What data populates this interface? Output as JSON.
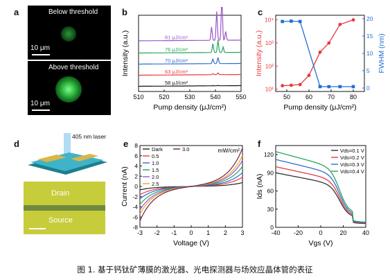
{
  "panels": {
    "a": {
      "label": "a",
      "top_text": "Below threshold",
      "bottom_text": "Above threshold",
      "scale_top": "10 μm",
      "scale_bottom": "10 μm"
    },
    "d": {
      "label": "d",
      "laser_text": "405 nm laser",
      "drain": "Drain",
      "source": "Source"
    }
  },
  "caption": "图 1. 基于钙钛矿薄膜的激光器、光电探测器与场效应晶体管的表征",
  "chart_data": [
    {
      "panel": "b",
      "type": "line",
      "title": "",
      "xlabel": "Pump density (μJ/cm²)",
      "ylabel": "Intensity (a.u.)",
      "xlim": [
        510,
        550
      ],
      "xticks": [
        510,
        520,
        530,
        540,
        550
      ],
      "series": [
        {
          "name": "58 μJ/cm²",
          "color": "#111111",
          "offset": 0.0,
          "peaks": [
            [
              539,
              0.02
            ],
            [
              541,
              0.03
            ]
          ]
        },
        {
          "name": "63 μJ/cm²",
          "color": "#e8383d",
          "offset": 1.0,
          "peaks": [
            [
              539,
              0.1
            ],
            [
              541,
              0.15
            ]
          ]
        },
        {
          "name": "70 μJ/cm²",
          "color": "#2f6cd1",
          "offset": 2.0,
          "peaks": [
            [
              539,
              0.4
            ],
            [
              541,
              0.55
            ]
          ]
        },
        {
          "name": "76 μJ/cm²",
          "color": "#25a55f",
          "offset": 3.0,
          "peaks": [
            [
              539,
              0.8
            ],
            [
              541,
              1.1
            ],
            [
              543,
              0.5
            ]
          ]
        },
        {
          "name": "81 μJ/cm²",
          "color": "#9b55c9",
          "offset": 4.1,
          "peaks": [
            [
              538.5,
              1.2
            ],
            [
              540.5,
              2.6
            ],
            [
              542.5,
              3.9
            ],
            [
              544,
              0.8
            ]
          ]
        }
      ]
    },
    {
      "panel": "c",
      "type": "line",
      "title": "",
      "xlabel": "Pump density (μJ/cm²)",
      "ylabel": "Intensity (a.u.)",
      "y2label": "FWHM (nm)",
      "xlim": [
        45,
        85
      ],
      "xticks": [
        50,
        60,
        70,
        80
      ],
      "yticks": [
        "10¹",
        "10²",
        "10³",
        "10⁴"
      ],
      "y2lim": [
        0,
        20
      ],
      "y2ticks": [
        0,
        5,
        10,
        15,
        20
      ],
      "series": [
        {
          "name": "Intensity",
          "axis": "left",
          "color": "#e8383d",
          "log10": true,
          "x": [
            48,
            52,
            56,
            60,
            65,
            69,
            74,
            80
          ],
          "y": [
            1.15,
            1.17,
            1.2,
            1.6,
            2.6,
            3.0,
            3.8,
            4.0
          ]
        },
        {
          "name": "FWHM",
          "axis": "right",
          "color": "#1f6fd6",
          "x": [
            48,
            52,
            56,
            65,
            69,
            74,
            80
          ],
          "y": [
            19.2,
            19.3,
            19.2,
            0.4,
            0.4,
            0.4,
            0.4
          ]
        }
      ]
    },
    {
      "panel": "e",
      "type": "line",
      "title": "",
      "xlabel": "Voltage (V)",
      "ylabel": "Current (nA)",
      "legend_title": "mW/cm²",
      "xlim": [
        -3,
        3
      ],
      "ylim": [
        -8,
        8
      ],
      "xticks": [
        -3,
        -2,
        -1,
        0,
        1,
        2,
        3
      ],
      "yticks": [
        -8,
        -6,
        -4,
        -2,
        0,
        2,
        4,
        6,
        8
      ],
      "series": [
        {
          "name": "Dark",
          "color": "#222222",
          "k": 0.25
        },
        {
          "name": "0.5",
          "color": "#e8383d",
          "k": 0.6
        },
        {
          "name": "1.0",
          "color": "#2f6cd1",
          "k": 0.9
        },
        {
          "name": "1.5",
          "color": "#25a55f",
          "k": 1.3
        },
        {
          "name": "2.0",
          "color": "#9b55c9",
          "k": 1.7
        },
        {
          "name": "2.5",
          "color": "#e8a51e",
          "k": 2.0
        },
        {
          "name": "3.0",
          "color": "#6b1f4c",
          "k": 2.5
        }
      ]
    },
    {
      "panel": "f",
      "type": "line",
      "title": "",
      "xlabel": "Vgs (V)",
      "ylabel": "Ids (nA)",
      "xlim": [
        -40,
        40
      ],
      "ylim": [
        0,
        135
      ],
      "xticks": [
        -40,
        -20,
        0,
        20,
        40
      ],
      "yticks": [
        0,
        30,
        60,
        90,
        120
      ],
      "series": [
        {
          "name": "Vds=0.1 V",
          "color": "#333333",
          "y0": 90
        },
        {
          "name": "Vds=0.2 V",
          "color": "#e8383d",
          "y0": 100
        },
        {
          "name": "Vds=0.3 V",
          "color": "#2f6cd1",
          "y0": 112
        },
        {
          "name": "Vds=0.4 V",
          "color": "#25a55f",
          "y0": 125
        }
      ]
    }
  ]
}
